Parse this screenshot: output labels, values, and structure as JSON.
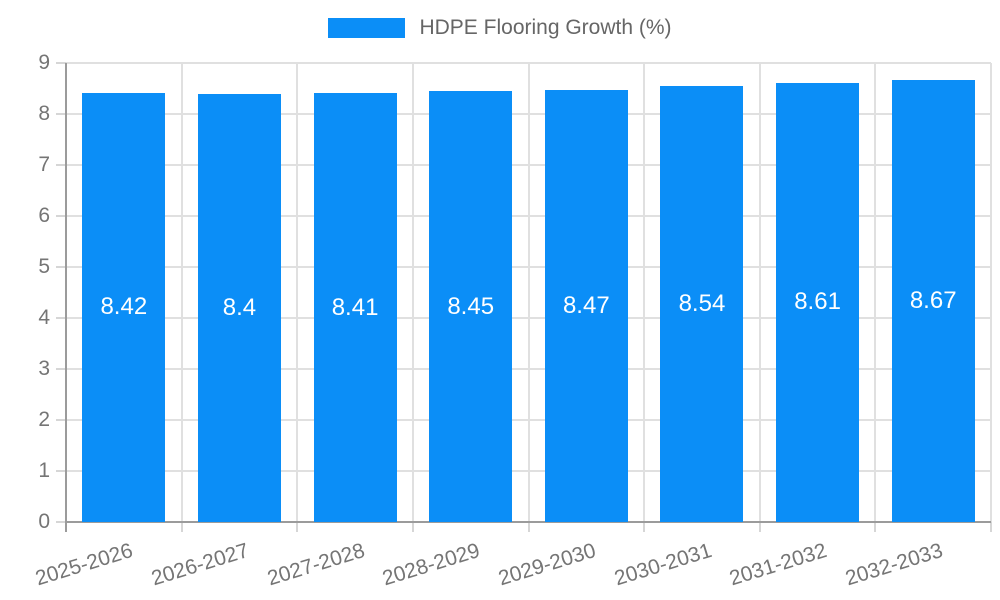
{
  "legend": {
    "label": "HDPE Flooring Growth (%)",
    "swatch_color": "#0b8ef7"
  },
  "chart_data": {
    "type": "bar",
    "title": "HDPE Flooring Growth (%)",
    "categories": [
      "2025-2026",
      "2026-2027",
      "2027-2028",
      "2028-2029",
      "2029-2030",
      "2030-2031",
      "2031-2032",
      "2032-2033"
    ],
    "values": [
      8.42,
      8.4,
      8.41,
      8.45,
      8.47,
      8.54,
      8.61,
      8.67
    ],
    "value_labels": [
      "8.42",
      "8.4",
      "8.41",
      "8.45",
      "8.47",
      "8.54",
      "8.61",
      "8.67"
    ],
    "series_name": "HDPE Flooring Growth (%)",
    "xlabel": "",
    "ylabel": "",
    "ylim": [
      0,
      9
    ],
    "yticks": [
      0,
      1,
      2,
      3,
      4,
      5,
      6,
      7,
      8,
      9
    ],
    "grid": true,
    "legend_position": "top",
    "colors": {
      "bar": "#0b8ef7",
      "data_label": "#ffffff",
      "tick_text": "#757575",
      "legend_text": "#666666",
      "gridline": "#e0e0e0",
      "axis_line": "#9b9b9b"
    }
  }
}
